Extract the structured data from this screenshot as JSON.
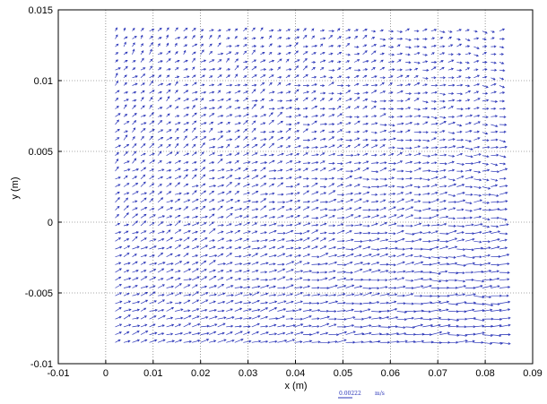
{
  "chart_data": {
    "type": "scatter",
    "subtype": "vector-field",
    "xlabel": "x (m)",
    "ylabel": "y (m)",
    "xlim": [
      -0.01,
      0.09
    ],
    "ylim": [
      -0.01,
      0.015
    ],
    "xticks": [
      "-0.01",
      "0",
      "0.01",
      "0.02",
      "0.03",
      "0.04",
      "0.05",
      "0.06",
      "0.07",
      "0.08",
      "0.09"
    ],
    "yticks": [
      "-0.01",
      "-0.005",
      "0",
      "0.005",
      "0.01",
      "0.015"
    ],
    "grid": true,
    "grid_style": "dotted",
    "vector_color": "#2a35b8",
    "field": {
      "x_range": [
        0.002,
        0.083
      ],
      "y_range": [
        -0.0085,
        0.0135
      ],
      "columns": 46,
      "rows": 41
    },
    "reference_vector": {
      "label": "0.00222",
      "unit": "m/s"
    }
  }
}
